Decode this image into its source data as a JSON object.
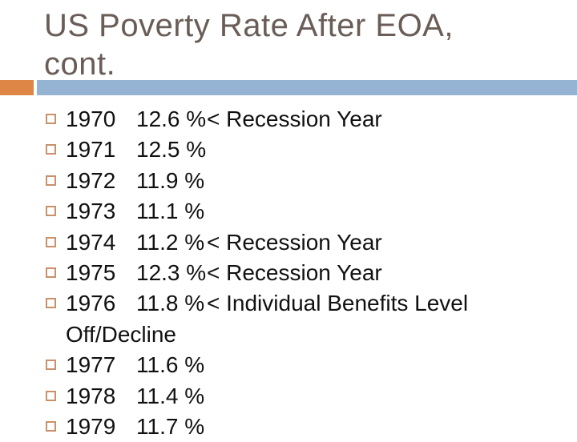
{
  "theme": {
    "background": "#ffffff",
    "title_color": "#6a5d57",
    "text_color": "#111111",
    "accent_orange": "#dd8645",
    "accent_blue": "#95b3d2",
    "bullet_tan": "#c9906a"
  },
  "slide": {
    "title": {
      "full": "US Poverty Rate After EOA, cont.",
      "line1": "US Poverty Rate After EOA,",
      "line2": "cont."
    },
    "list": {
      "items": [
        {
          "year": "1970",
          "rate": "12.6 %",
          "note": "< Recession Year"
        },
        {
          "year": "1971",
          "rate": "12.5 %",
          "note": ""
        },
        {
          "year": "1972",
          "rate": "11.9 %",
          "note": ""
        },
        {
          "year": "1973",
          "rate": "11.1 %",
          "note": ""
        },
        {
          "year": "1974",
          "rate": "11.2 %",
          "note": "< Recession Year"
        },
        {
          "year": "1975",
          "rate": "12.3 %",
          "note": "< Recession Year"
        },
        {
          "year": "1976",
          "rate": "11.8 %",
          "note": "< Individual Benefits Level",
          "note_continuation": "Off/Decline"
        },
        {
          "year": "1977",
          "rate": "11.6 %",
          "note": ""
        },
        {
          "year": "1978",
          "rate": "11.4 %",
          "note": ""
        },
        {
          "year": "1979",
          "rate": "11.7 %",
          "note": ""
        }
      ]
    }
  }
}
